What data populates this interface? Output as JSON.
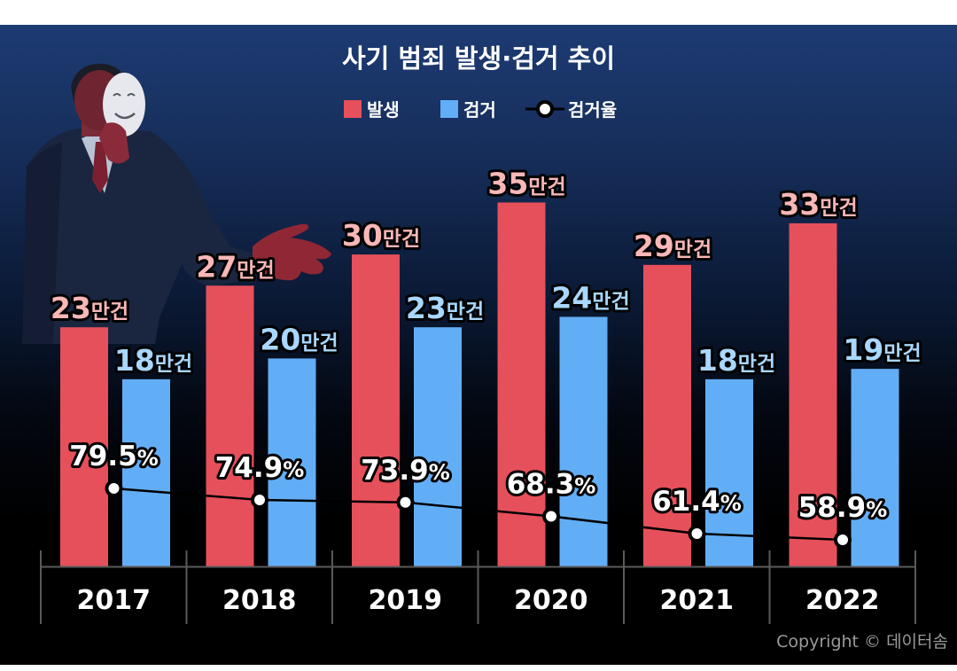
{
  "chart_data": {
    "type": "bar",
    "title": "사기 범죄 발생·검거 추이",
    "categories": [
      "2017",
      "2018",
      "2019",
      "2020",
      "2021",
      "2022"
    ],
    "unit": "만건",
    "series": [
      {
        "name": "발생",
        "type": "bar",
        "values": [
          23,
          27,
          30,
          35,
          29,
          33
        ],
        "color": "#e6505b"
      },
      {
        "name": "검거",
        "type": "bar",
        "values": [
          18,
          20,
          23,
          24,
          18,
          19
        ],
        "color": "#62aef6"
      },
      {
        "name": "검거율",
        "type": "line",
        "values": [
          79.5,
          74.9,
          73.9,
          68.3,
          61.4,
          58.9
        ],
        "unit": "%",
        "color": "#000000"
      }
    ],
    "colors": {
      "occur_label": "#f9b7b7",
      "arrest_label": "#a9d7ff",
      "outline": "#000000",
      "axis": "#5a5a5a"
    }
  },
  "copyright": "Copyright © 데이터솜"
}
